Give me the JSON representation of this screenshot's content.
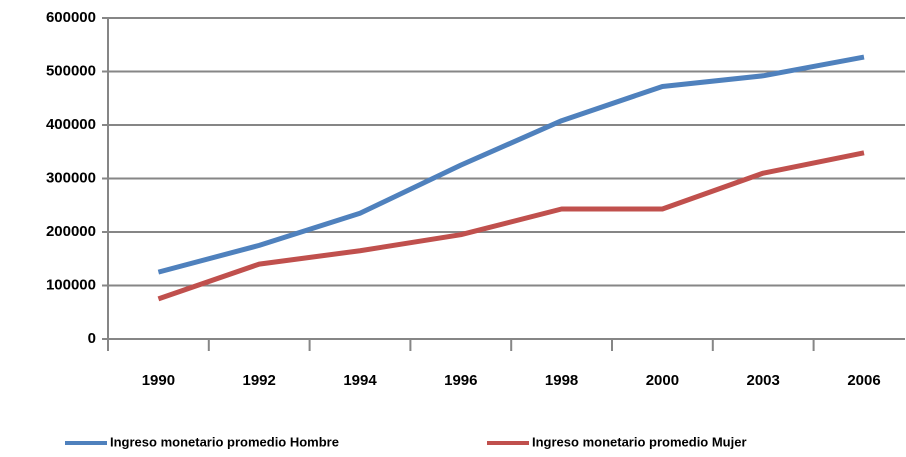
{
  "chart_data": {
    "type": "line",
    "categories": [
      "1990",
      "1992",
      "1994",
      "1996",
      "1998",
      "2000",
      "2003",
      "2006"
    ],
    "series": [
      {
        "name": "Ingreso monetario promedio Hombre",
        "color": "#4f81bd",
        "values": [
          125000,
          175000,
          235000,
          325000,
          408000,
          472000,
          492000,
          527000
        ]
      },
      {
        "name": "Ingreso monetario promedio Mujer",
        "color": "#c0504d",
        "values": [
          75000,
          140000,
          165000,
          195000,
          243000,
          243000,
          310000,
          348000
        ]
      }
    ],
    "ylim": [
      0,
      600000
    ],
    "yticks": [
      0,
      100000,
      200000,
      300000,
      400000,
      500000,
      600000
    ],
    "grid": true,
    "legend": "bottom"
  }
}
